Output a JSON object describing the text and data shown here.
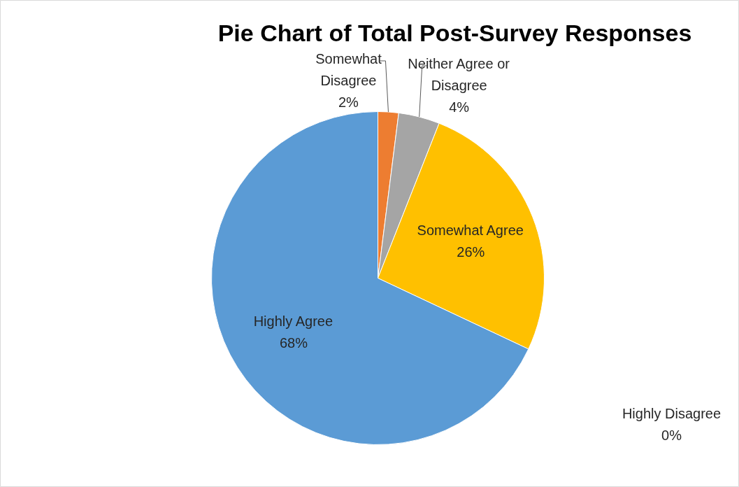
{
  "chart_data": {
    "type": "pie",
    "title": "Pie Chart of Total Post-Survey Responses",
    "categories": [
      "Somewhat Disagree",
      "Neither Agree or Disagree",
      "Somewhat Agree",
      "Highly Agree",
      "Highly Disagree"
    ],
    "values": [
      2,
      4,
      26,
      68,
      0
    ],
    "value_labels": [
      "2%",
      "4%",
      "26%",
      "68%",
      "0%"
    ],
    "colors": [
      "#ed7d31",
      "#a5a5a5",
      "#ffc000",
      "#5b9bd5",
      "#4472c4"
    ]
  }
}
